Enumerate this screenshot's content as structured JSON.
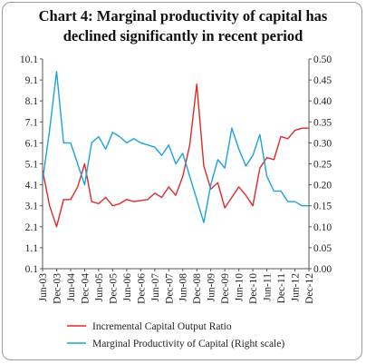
{
  "title_lines": [
    "Chart 4: Marginal productivity of capital has",
    "declined significantly in recent period"
  ],
  "chart_data": {
    "type": "line",
    "title": "Chart 4: Marginal productivity of capital has declined significantly in recent period",
    "x_tick_labels": [
      "Jun-03",
      "Dec-03",
      "Jun-04",
      "Dec-04",
      "Jun-05",
      "Dec-05",
      "Jun-06",
      "Dec-06",
      "Jun-07",
      "Dec-07",
      "Jun-08",
      "Dec-08",
      "Jun-09",
      "Dec-09",
      "Jun-10",
      "Dec-10",
      "Jun-11",
      "Dec-11",
      "Jun-12",
      "Dec-12"
    ],
    "y_left": {
      "min": 0.1,
      "max": 10.1,
      "ticks": [
        "0.1",
        "1.1",
        "2.1",
        "3.1",
        "4.1",
        "5.1",
        "6.1",
        "7.1",
        "8.1",
        "9.1",
        "10.1"
      ]
    },
    "y_right": {
      "min": 0.0,
      "max": 0.5,
      "ticks": [
        "0.00",
        "0.05",
        "0.10",
        "0.15",
        "0.20",
        "0.25",
        "0.30",
        "0.35",
        "0.40",
        "0.45",
        "0.50"
      ]
    },
    "series": [
      {
        "name": "Incremental Capital Output Ratio",
        "axis": "left",
        "color": "#e0282c",
        "values": [
          4.8,
          3.1,
          2.1,
          3.4,
          3.4,
          4.0,
          5.1,
          3.3,
          3.2,
          3.5,
          3.1,
          3.2,
          3.4,
          3.3,
          3.35,
          3.4,
          3.7,
          3.5,
          4.0,
          3.6,
          4.5,
          6.0,
          8.9,
          5.0,
          3.9,
          4.2,
          3.0,
          3.5,
          4.0,
          3.6,
          3.1,
          4.9,
          5.4,
          5.3,
          6.4,
          6.3,
          6.7,
          6.8,
          6.8
        ]
      },
      {
        "name": "Marginal Productivity of Capital (Right scale)",
        "axis": "right",
        "color": "#1aa3dc",
        "values": [
          0.21,
          0.33,
          0.47,
          0.3,
          0.3,
          0.25,
          0.2,
          0.3,
          0.315,
          0.285,
          0.325,
          0.315,
          0.3,
          0.31,
          0.3,
          0.295,
          0.29,
          0.27,
          0.295,
          0.25,
          0.275,
          0.22,
          0.165,
          0.11,
          0.2,
          0.26,
          0.24,
          0.335,
          0.285,
          0.245,
          0.27,
          0.32,
          0.22,
          0.185,
          0.185,
          0.16,
          0.16,
          0.15,
          0.15
        ]
      }
    ],
    "legend_position": "bottom"
  }
}
